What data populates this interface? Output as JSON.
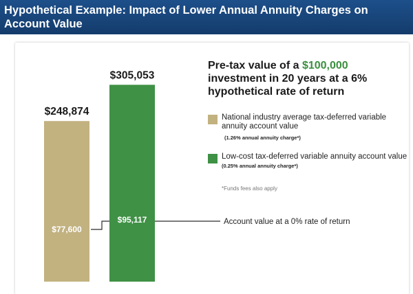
{
  "header": {
    "title": "Hypothetical Example: Impact of Lower Annual Annuity Charges on Account Value"
  },
  "legend": {
    "title_before": "Pre-tax value of a ",
    "title_amount": "$100,000",
    "title_after": " investment in 20 years at a 6% hypothetical rate of return",
    "items": [
      {
        "label": "National industry average tax-deferred variable annuity account value",
        "detail": "(1.26% annual annuity charge*)",
        "color": "#c2b280"
      },
      {
        "label": "Low-cost tax-deferred variable annuity account value",
        "detail": "(0.25% annual annuity charge*)",
        "color": "#3f9145"
      }
    ],
    "note": "*Funds fees also apply"
  },
  "callout": {
    "label": "Account value at a 0% rate of return"
  },
  "chart_data": {
    "type": "bar",
    "categories": [
      "National industry average",
      "Low-cost"
    ],
    "series": [
      {
        "values": [
          248874,
          305053
        ],
        "labels": [
          "$248,874",
          "$305,053"
        ]
      },
      {
        "values": [
          77600,
          95117
        ],
        "labels": [
          "$77,600",
          "$95,117"
        ]
      }
    ],
    "colors": [
      "#c2b280",
      "#3f9145"
    ],
    "ylim": [
      0,
      330000
    ],
    "grid": false,
    "legend_position": "right"
  }
}
